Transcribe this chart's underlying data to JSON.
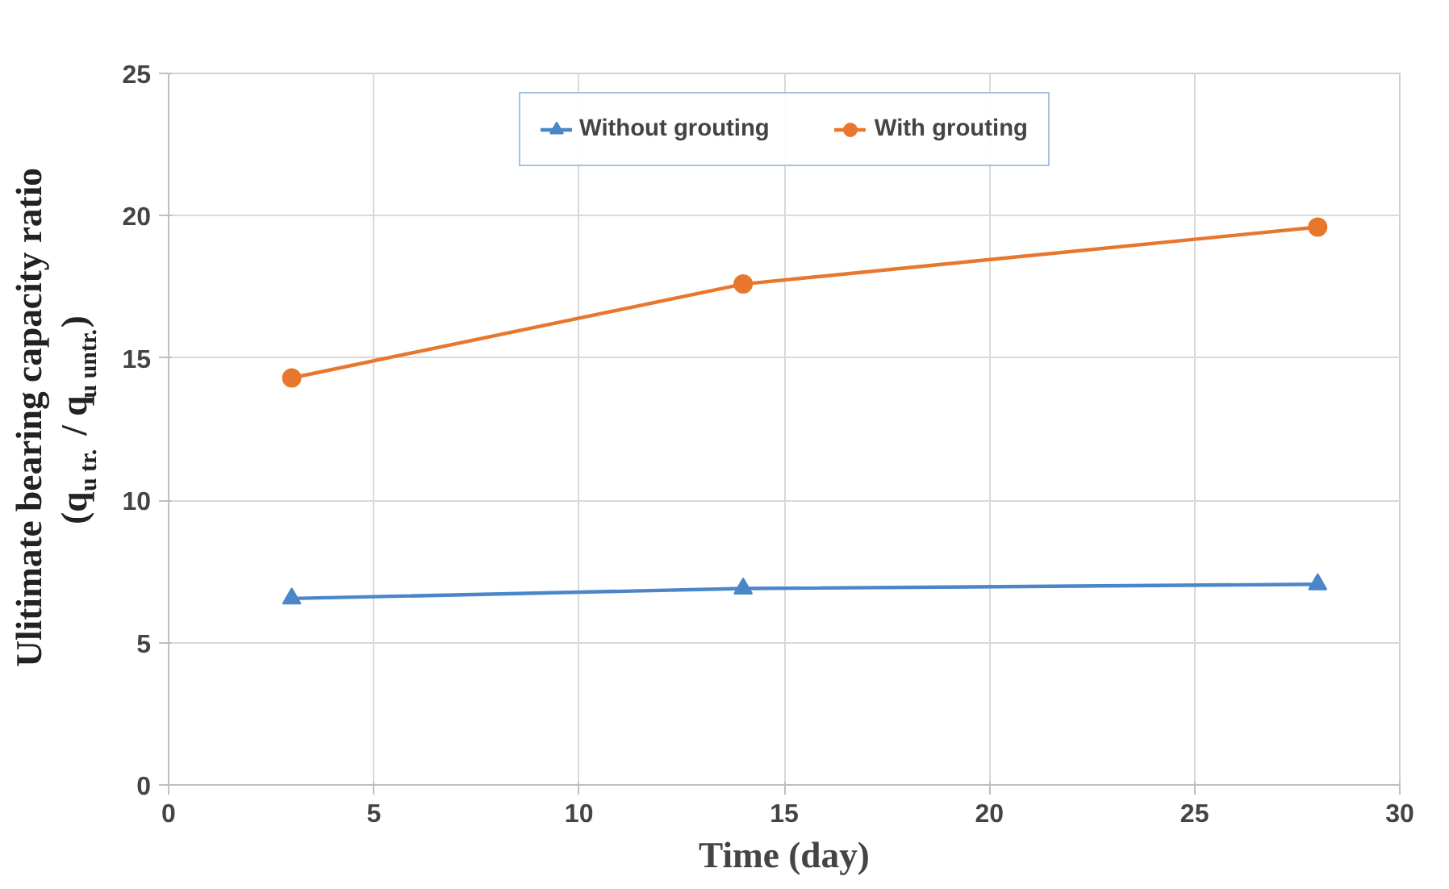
{
  "chart_data": {
    "type": "line",
    "xlabel": "Time (day)",
    "ylabel": "Ulitimate  bearing capacity ratio\n(q$_{u tr.}$ / q$_{u untr.}$)",
    "x": [
      3,
      14,
      28
    ],
    "series": [
      {
        "name": "Without grouting",
        "color": "#4a86c8",
        "marker": "triangle",
        "values": [
          6.55,
          6.9,
          7.05
        ]
      },
      {
        "name": "With grouting",
        "color": "#e8772e",
        "marker": "circle",
        "values": [
          14.3,
          17.6,
          19.6
        ]
      }
    ],
    "xlim": [
      0,
      30
    ],
    "xticks": [
      0,
      5,
      10,
      15,
      20,
      25,
      30
    ],
    "ylim": [
      0,
      25
    ],
    "yticks": [
      0,
      5,
      10,
      15,
      20,
      25
    ],
    "grid": true,
    "legend": "top",
    "line_style": "solid"
  }
}
